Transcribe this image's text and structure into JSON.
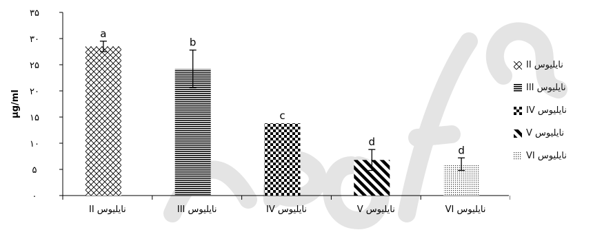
{
  "chart_data": {
    "type": "bar",
    "ylabel": "μg/ml",
    "ylim": [
      0,
      35
    ],
    "y_ticks": [
      {
        "value": 0,
        "label": "۰"
      },
      {
        "value": 5,
        "label": "۵"
      },
      {
        "value": 10,
        "label": "۱۰"
      },
      {
        "value": 15,
        "label": "۱۵"
      },
      {
        "value": 20,
        "label": "۲۰"
      },
      {
        "value": 25,
        "label": "۲۵"
      },
      {
        "value": 30,
        "label": "۳۰"
      },
      {
        "value": 35,
        "label": "۳۵"
      }
    ],
    "categories": [
      "نایلیوس II",
      "نایلیوس III",
      "نایلیوس IV",
      "نایلیوس V",
      "نایلیوس VI"
    ],
    "values": [
      28.5,
      24.2,
      13.8,
      6.8,
      6.0
    ],
    "errors": [
      1.0,
      3.6,
      0.0,
      2.0,
      1.2
    ],
    "significance": [
      "a",
      "b",
      "c",
      "d",
      "d"
    ],
    "patterns": [
      "crosshatch",
      "horizontal",
      "checker",
      "diagonal",
      "dots"
    ],
    "legend_position": "right",
    "grid": false
  },
  "legend": [
    {
      "label": "نایلیوس II",
      "icon": "crosshatch-icon"
    },
    {
      "label": "نایلیوس III",
      "icon": "horizontal-lines-icon"
    },
    {
      "label": "نایلیوس IV",
      "icon": "checker-icon"
    },
    {
      "label": "نایلیوس V",
      "icon": "diagonal-lines-icon"
    },
    {
      "label": "نایلیوس VI",
      "icon": "dots-icon"
    }
  ],
  "colors": {
    "axis": "#000000",
    "bar_ink": "#000000",
    "error_bar": "#000000",
    "watermark": "#e2e2e2"
  }
}
